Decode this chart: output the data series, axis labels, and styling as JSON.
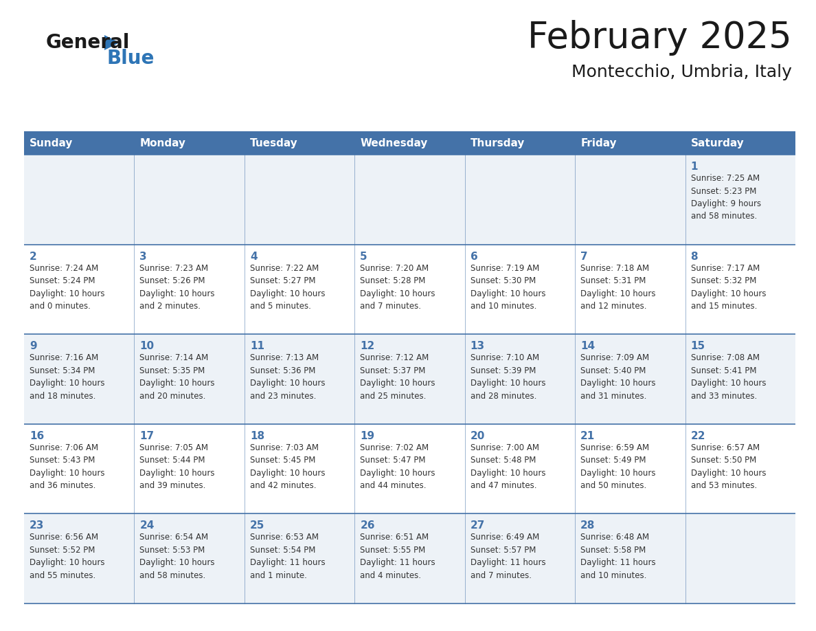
{
  "title": "February 2025",
  "subtitle": "Montecchio, Umbria, Italy",
  "header_bg": "#4472a8",
  "header_text": "#ffffff",
  "cell_bg_light": "#edf2f7",
  "cell_bg_white": "#ffffff",
  "border_color": "#4472a8",
  "text_color": "#333333",
  "day_number_color": "#4472a8",
  "logo_text_color": "#1a1a1a",
  "logo_blue_color": "#2e75b6",
  "day_headers": [
    "Sunday",
    "Monday",
    "Tuesday",
    "Wednesday",
    "Thursday",
    "Friday",
    "Saturday"
  ],
  "weeks": [
    [
      {
        "day": "",
        "info": ""
      },
      {
        "day": "",
        "info": ""
      },
      {
        "day": "",
        "info": ""
      },
      {
        "day": "",
        "info": ""
      },
      {
        "day": "",
        "info": ""
      },
      {
        "day": "",
        "info": ""
      },
      {
        "day": "1",
        "info": "Sunrise: 7:25 AM\nSunset: 5:23 PM\nDaylight: 9 hours\nand 58 minutes."
      }
    ],
    [
      {
        "day": "2",
        "info": "Sunrise: 7:24 AM\nSunset: 5:24 PM\nDaylight: 10 hours\nand 0 minutes."
      },
      {
        "day": "3",
        "info": "Sunrise: 7:23 AM\nSunset: 5:26 PM\nDaylight: 10 hours\nand 2 minutes."
      },
      {
        "day": "4",
        "info": "Sunrise: 7:22 AM\nSunset: 5:27 PM\nDaylight: 10 hours\nand 5 minutes."
      },
      {
        "day": "5",
        "info": "Sunrise: 7:20 AM\nSunset: 5:28 PM\nDaylight: 10 hours\nand 7 minutes."
      },
      {
        "day": "6",
        "info": "Sunrise: 7:19 AM\nSunset: 5:30 PM\nDaylight: 10 hours\nand 10 minutes."
      },
      {
        "day": "7",
        "info": "Sunrise: 7:18 AM\nSunset: 5:31 PM\nDaylight: 10 hours\nand 12 minutes."
      },
      {
        "day": "8",
        "info": "Sunrise: 7:17 AM\nSunset: 5:32 PM\nDaylight: 10 hours\nand 15 minutes."
      }
    ],
    [
      {
        "day": "9",
        "info": "Sunrise: 7:16 AM\nSunset: 5:34 PM\nDaylight: 10 hours\nand 18 minutes."
      },
      {
        "day": "10",
        "info": "Sunrise: 7:14 AM\nSunset: 5:35 PM\nDaylight: 10 hours\nand 20 minutes."
      },
      {
        "day": "11",
        "info": "Sunrise: 7:13 AM\nSunset: 5:36 PM\nDaylight: 10 hours\nand 23 minutes."
      },
      {
        "day": "12",
        "info": "Sunrise: 7:12 AM\nSunset: 5:37 PM\nDaylight: 10 hours\nand 25 minutes."
      },
      {
        "day": "13",
        "info": "Sunrise: 7:10 AM\nSunset: 5:39 PM\nDaylight: 10 hours\nand 28 minutes."
      },
      {
        "day": "14",
        "info": "Sunrise: 7:09 AM\nSunset: 5:40 PM\nDaylight: 10 hours\nand 31 minutes."
      },
      {
        "day": "15",
        "info": "Sunrise: 7:08 AM\nSunset: 5:41 PM\nDaylight: 10 hours\nand 33 minutes."
      }
    ],
    [
      {
        "day": "16",
        "info": "Sunrise: 7:06 AM\nSunset: 5:43 PM\nDaylight: 10 hours\nand 36 minutes."
      },
      {
        "day": "17",
        "info": "Sunrise: 7:05 AM\nSunset: 5:44 PM\nDaylight: 10 hours\nand 39 minutes."
      },
      {
        "day": "18",
        "info": "Sunrise: 7:03 AM\nSunset: 5:45 PM\nDaylight: 10 hours\nand 42 minutes."
      },
      {
        "day": "19",
        "info": "Sunrise: 7:02 AM\nSunset: 5:47 PM\nDaylight: 10 hours\nand 44 minutes."
      },
      {
        "day": "20",
        "info": "Sunrise: 7:00 AM\nSunset: 5:48 PM\nDaylight: 10 hours\nand 47 minutes."
      },
      {
        "day": "21",
        "info": "Sunrise: 6:59 AM\nSunset: 5:49 PM\nDaylight: 10 hours\nand 50 minutes."
      },
      {
        "day": "22",
        "info": "Sunrise: 6:57 AM\nSunset: 5:50 PM\nDaylight: 10 hours\nand 53 minutes."
      }
    ],
    [
      {
        "day": "23",
        "info": "Sunrise: 6:56 AM\nSunset: 5:52 PM\nDaylight: 10 hours\nand 55 minutes."
      },
      {
        "day": "24",
        "info": "Sunrise: 6:54 AM\nSunset: 5:53 PM\nDaylight: 10 hours\nand 58 minutes."
      },
      {
        "day": "25",
        "info": "Sunrise: 6:53 AM\nSunset: 5:54 PM\nDaylight: 11 hours\nand 1 minute."
      },
      {
        "day": "26",
        "info": "Sunrise: 6:51 AM\nSunset: 5:55 PM\nDaylight: 11 hours\nand 4 minutes."
      },
      {
        "day": "27",
        "info": "Sunrise: 6:49 AM\nSunset: 5:57 PM\nDaylight: 11 hours\nand 7 minutes."
      },
      {
        "day": "28",
        "info": "Sunrise: 6:48 AM\nSunset: 5:58 PM\nDaylight: 11 hours\nand 10 minutes."
      },
      {
        "day": "",
        "info": ""
      }
    ]
  ]
}
